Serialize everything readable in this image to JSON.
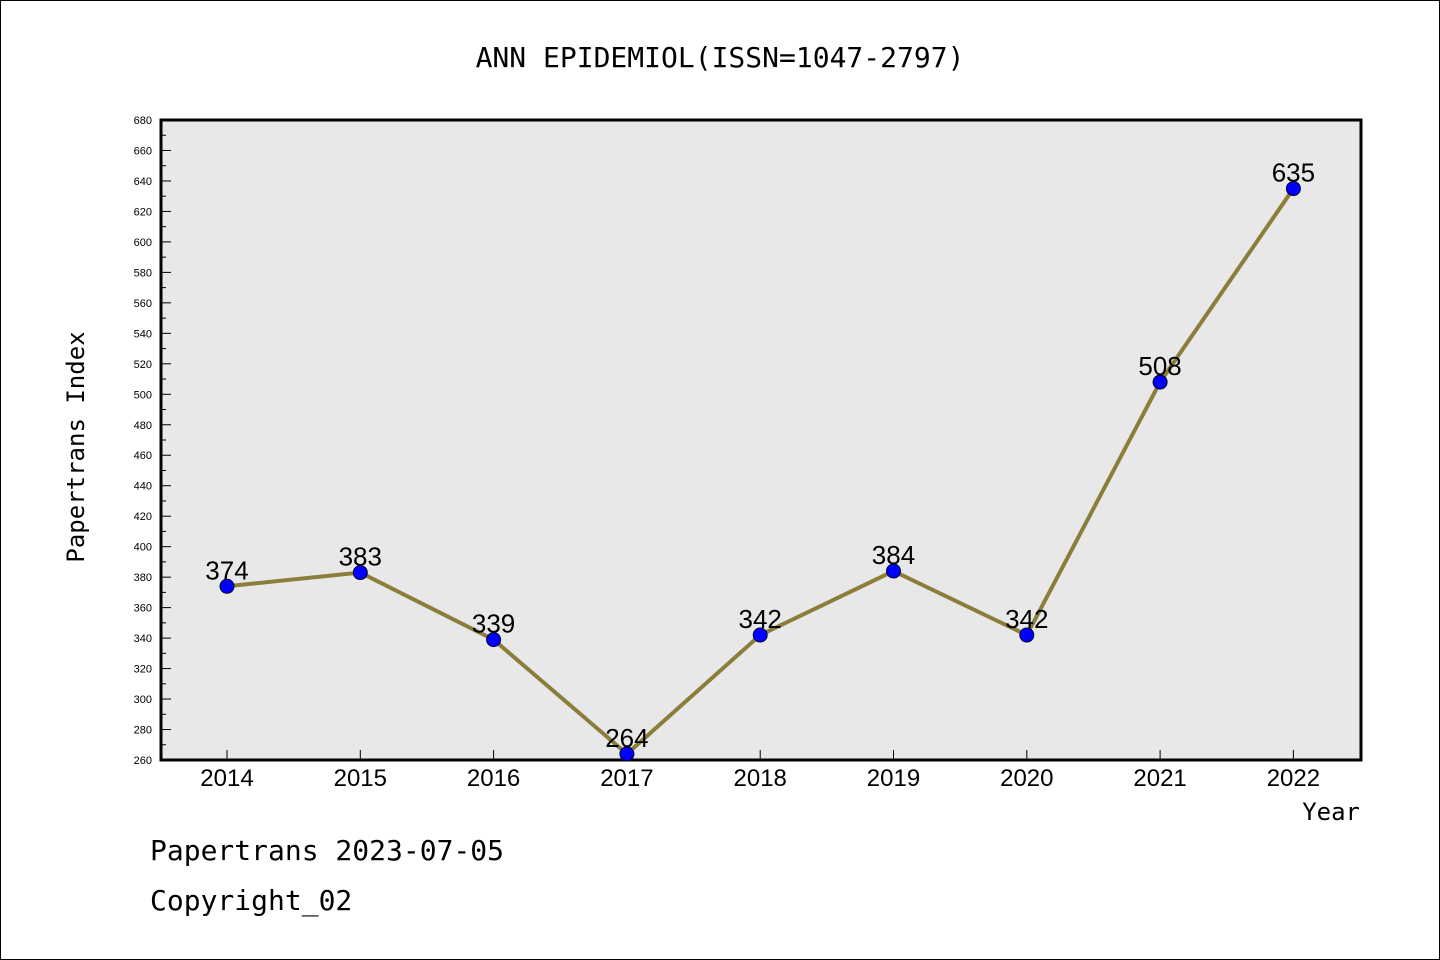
{
  "chart_data": {
    "type": "line",
    "title": "ANN EPIDEMIOL(ISSN=1047-2797)",
    "xlabel": "Year",
    "ylabel": "Papertrans Index",
    "categories": [
      "2014",
      "2015",
      "2016",
      "2017",
      "2018",
      "2019",
      "2020",
      "2021",
      "2022"
    ],
    "series": [
      {
        "values": [
          374,
          383,
          339,
          264,
          342,
          384,
          342,
          508,
          635
        ]
      }
    ],
    "ylim": [
      260,
      680
    ],
    "ytick_step": 20,
    "grid": false,
    "colors": {
      "line": "#8b7d3a",
      "marker": "#0000ff",
      "plot_bg": "#e8e8e8"
    }
  },
  "footer": {
    "line1": "Papertrans 2023-07-05",
    "line2": "Copyright_02"
  }
}
